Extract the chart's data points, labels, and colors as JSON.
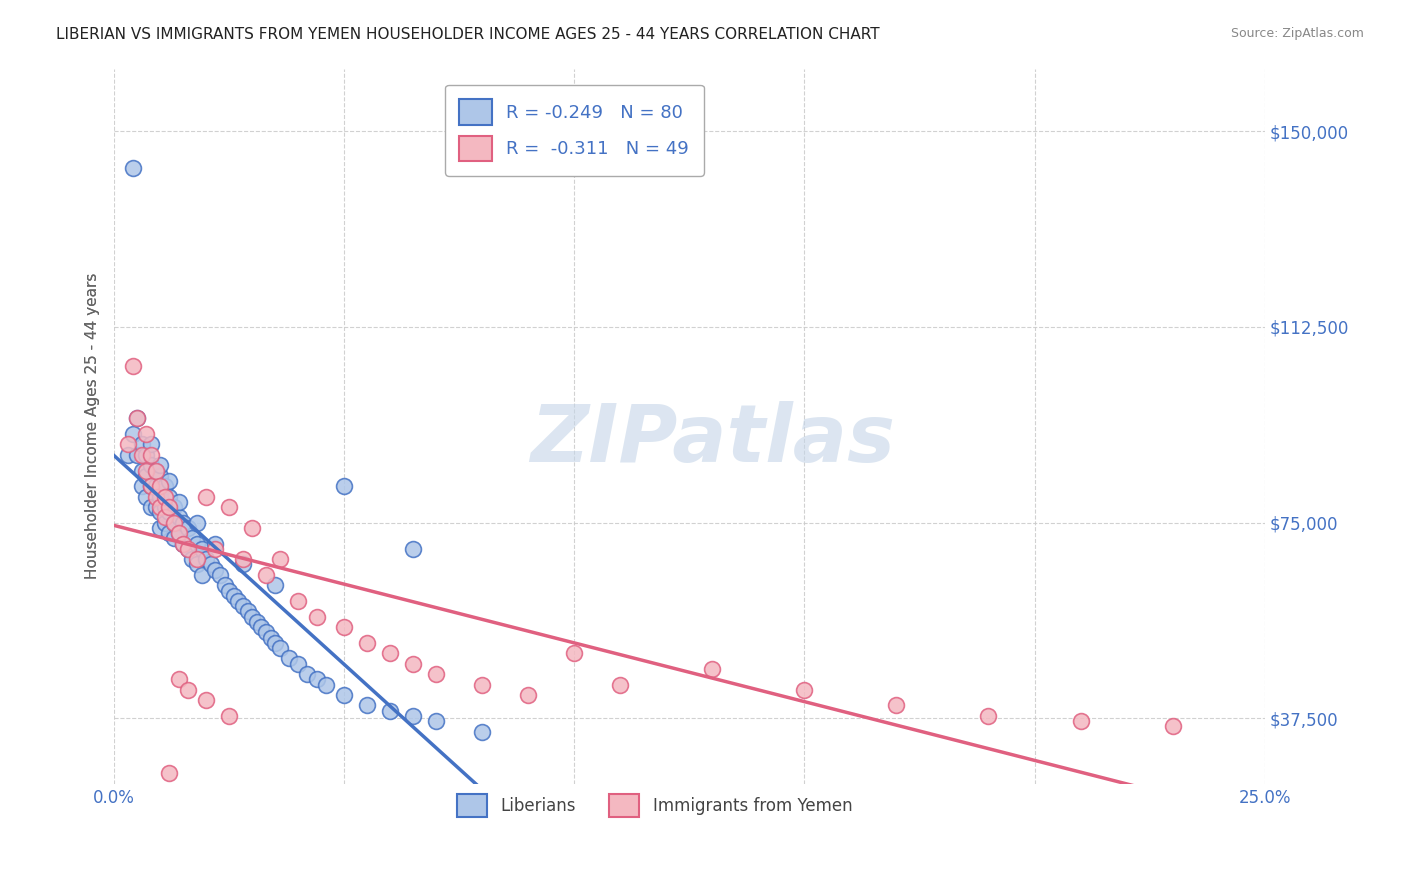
{
  "title": "LIBERIAN VS IMMIGRANTS FROM YEMEN HOUSEHOLDER INCOME AGES 25 - 44 YEARS CORRELATION CHART",
  "source": "Source: ZipAtlas.com",
  "ylabel": "Householder Income Ages 25 - 44 years",
  "xlim": [
    0.0,
    0.25
  ],
  "ylim": [
    25000,
    162000
  ],
  "xticks": [
    0.0,
    0.05,
    0.1,
    0.15,
    0.2,
    0.25
  ],
  "xticklabels": [
    "0.0%",
    "",
    "",
    "",
    "",
    "25.0%"
  ],
  "yticks": [
    37500,
    75000,
    112500,
    150000
  ],
  "yticklabels": [
    "$37,500",
    "$75,000",
    "$112,500",
    "$150,000"
  ],
  "legend_blue_r": "R = -0.249",
  "legend_blue_n": "N = 80",
  "legend_pink_r": "R =  -0.311",
  "legend_pink_n": "N = 49",
  "legend_bottom_blue": "Liberians",
  "legend_bottom_pink": "Immigrants from Yemen",
  "blue_fill": "#aec6e8",
  "blue_edge": "#4472c4",
  "pink_fill": "#f4b8c1",
  "pink_edge": "#e06080",
  "blue_line_color": "#4472c4",
  "pink_line_color": "#e06080",
  "blue_scatter_x": [
    0.003,
    0.004,
    0.004,
    0.005,
    0.005,
    0.006,
    0.006,
    0.006,
    0.007,
    0.007,
    0.007,
    0.008,
    0.008,
    0.008,
    0.009,
    0.009,
    0.009,
    0.01,
    0.01,
    0.01,
    0.01,
    0.011,
    0.011,
    0.011,
    0.012,
    0.012,
    0.012,
    0.013,
    0.013,
    0.013,
    0.014,
    0.014,
    0.015,
    0.015,
    0.016,
    0.016,
    0.017,
    0.017,
    0.018,
    0.018,
    0.019,
    0.019,
    0.02,
    0.021,
    0.022,
    0.023,
    0.024,
    0.025,
    0.026,
    0.027,
    0.028,
    0.029,
    0.03,
    0.031,
    0.032,
    0.033,
    0.034,
    0.035,
    0.036,
    0.038,
    0.04,
    0.042,
    0.044,
    0.046,
    0.05,
    0.055,
    0.06,
    0.065,
    0.07,
    0.08,
    0.008,
    0.01,
    0.012,
    0.014,
    0.018,
    0.022,
    0.028,
    0.035,
    0.05,
    0.065
  ],
  "blue_scatter_y": [
    88000,
    143000,
    92000,
    95000,
    88000,
    90000,
    85000,
    82000,
    88000,
    84000,
    80000,
    86000,
    82000,
    78000,
    85000,
    82000,
    78000,
    84000,
    80000,
    77000,
    74000,
    82000,
    78000,
    75000,
    80000,
    77000,
    73000,
    78000,
    75000,
    72000,
    76000,
    73000,
    75000,
    71000,
    74000,
    70000,
    72000,
    68000,
    71000,
    67000,
    70000,
    65000,
    68000,
    67000,
    66000,
    65000,
    63000,
    62000,
    61000,
    60000,
    59000,
    58000,
    57000,
    56000,
    55000,
    54000,
    53000,
    52000,
    51000,
    49000,
    48000,
    46000,
    45000,
    44000,
    42000,
    40000,
    39000,
    38000,
    37000,
    35000,
    90000,
    86000,
    83000,
    79000,
    75000,
    71000,
    67000,
    63000,
    82000,
    70000
  ],
  "pink_scatter_x": [
    0.003,
    0.004,
    0.005,
    0.006,
    0.007,
    0.007,
    0.008,
    0.008,
    0.009,
    0.009,
    0.01,
    0.01,
    0.011,
    0.011,
    0.012,
    0.013,
    0.014,
    0.015,
    0.016,
    0.018,
    0.02,
    0.022,
    0.025,
    0.028,
    0.03,
    0.033,
    0.036,
    0.04,
    0.044,
    0.05,
    0.055,
    0.06,
    0.065,
    0.07,
    0.08,
    0.09,
    0.1,
    0.11,
    0.13,
    0.15,
    0.17,
    0.19,
    0.21,
    0.23,
    0.012,
    0.014,
    0.016,
    0.02,
    0.025
  ],
  "pink_scatter_y": [
    90000,
    105000,
    95000,
    88000,
    85000,
    92000,
    82000,
    88000,
    80000,
    85000,
    78000,
    82000,
    80000,
    76000,
    78000,
    75000,
    73000,
    71000,
    70000,
    68000,
    80000,
    70000,
    78000,
    68000,
    74000,
    65000,
    68000,
    60000,
    57000,
    55000,
    52000,
    50000,
    48000,
    46000,
    44000,
    42000,
    50000,
    44000,
    47000,
    43000,
    40000,
    38000,
    37000,
    36000,
    27000,
    45000,
    43000,
    41000,
    38000
  ],
  "background_color": "#ffffff",
  "grid_color": "#cccccc",
  "watermark": "ZIPatlas",
  "watermark_color": "#c5d5e8"
}
